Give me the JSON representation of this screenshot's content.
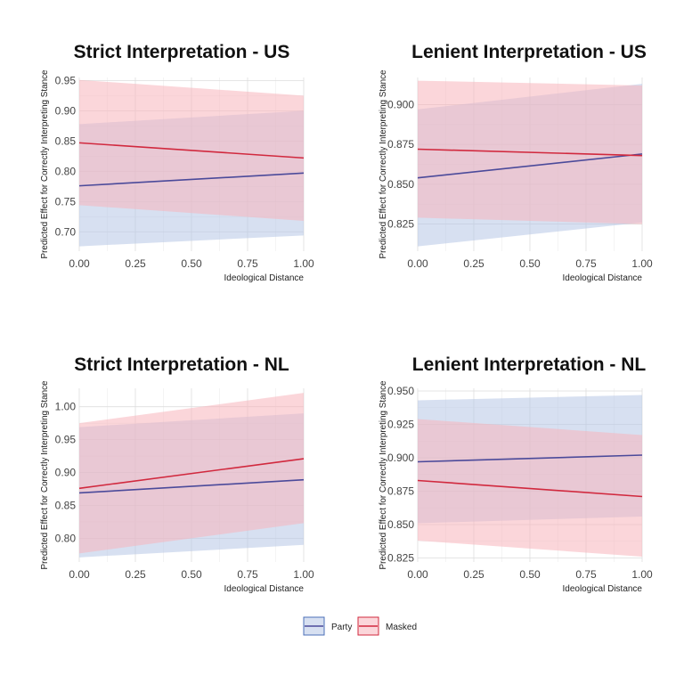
{
  "colors": {
    "party_line": "#4b4a9a",
    "party_fill": "#b7c6e6",
    "masked_line": "#d1293e",
    "masked_fill": "#f8b4bb",
    "grid": "#dddddd"
  },
  "legend": {
    "items": [
      {
        "label": "Party",
        "line": "#4b4a9a",
        "fill": "#b7c6e6",
        "border": "#4b6fb8"
      },
      {
        "label": "Masked",
        "line": "#d1293e",
        "fill": "#f8b4bb",
        "border": "#d1293e"
      }
    ]
  },
  "chart_data": [
    {
      "type": "line",
      "title": "Strict Interpretation - US",
      "xlabel": "Ideological Distance",
      "ylabel": "Predicted Effect for Correctly Interpreting Stance",
      "xlim": [
        0,
        1
      ],
      "ylim": [
        0.668,
        0.955
      ],
      "xticks": [
        0,
        0.25,
        0.5,
        0.75,
        1
      ],
      "xtick_labels": [
        "0.00",
        "0.25",
        "0.50",
        "0.75",
        "1.00"
      ],
      "yticks": [
        0.7,
        0.75,
        0.8,
        0.85,
        0.9,
        0.95
      ],
      "ytick_labels": [
        "0.70",
        "0.75",
        "0.80",
        "0.85",
        "0.90",
        "0.95"
      ],
      "grid": true,
      "series": [
        {
          "name": "Party",
          "x": [
            0,
            1
          ],
          "y": [
            0.776,
            0.797
          ],
          "lower": [
            0.676,
            0.694
          ],
          "upper": [
            0.878,
            0.9
          ]
        },
        {
          "name": "Masked",
          "x": [
            0,
            1
          ],
          "y": [
            0.847,
            0.822
          ],
          "lower": [
            0.744,
            0.718
          ],
          "upper": [
            0.951,
            0.925
          ]
        }
      ]
    },
    {
      "type": "line",
      "title": "Lenient Interpretation - US",
      "xlabel": "Ideological Distance",
      "ylabel": "Predicted Effect for Correctly Interpreting Stance",
      "xlim": [
        0,
        1
      ],
      "ylim": [
        0.808,
        0.917
      ],
      "xticks": [
        0,
        0.25,
        0.5,
        0.75,
        1
      ],
      "xtick_labels": [
        "0.00",
        "0.25",
        "0.50",
        "0.75",
        "1.00"
      ],
      "yticks": [
        0.825,
        0.85,
        0.875,
        0.9
      ],
      "ytick_labels": [
        "0.825",
        "0.850",
        "0.875",
        "0.900"
      ],
      "grid": true,
      "series": [
        {
          "name": "Party",
          "x": [
            0,
            1
          ],
          "y": [
            0.854,
            0.869
          ],
          "lower": [
            0.811,
            0.826
          ],
          "upper": [
            0.897,
            0.913
          ]
        },
        {
          "name": "Masked",
          "x": [
            0,
            1
          ],
          "y": [
            0.872,
            0.868
          ],
          "lower": [
            0.829,
            0.825
          ],
          "upper": [
            0.915,
            0.912
          ]
        }
      ]
    },
    {
      "type": "line",
      "title": "Strict Interpretation - NL",
      "xlabel": "Ideological Distance",
      "ylabel": "Predicted Effect for Correctly Interpreting Stance",
      "xlim": [
        0,
        1
      ],
      "ylim": [
        0.764,
        1.028
      ],
      "xticks": [
        0,
        0.25,
        0.5,
        0.75,
        1
      ],
      "xtick_labels": [
        "0.00",
        "0.25",
        "0.50",
        "0.75",
        "1.00"
      ],
      "yticks": [
        0.8,
        0.85,
        0.9,
        0.95,
        1.0
      ],
      "ytick_labels": [
        "0.80",
        "0.85",
        "0.90",
        "0.95",
        "1.00"
      ],
      "grid": true,
      "series": [
        {
          "name": "Party",
          "x": [
            0,
            1
          ],
          "y": [
            0.869,
            0.889
          ],
          "lower": [
            0.771,
            0.79
          ],
          "upper": [
            0.969,
            0.99
          ]
        },
        {
          "name": "Masked",
          "x": [
            0,
            1
          ],
          "y": [
            0.876,
            0.921
          ],
          "lower": [
            0.777,
            0.823
          ],
          "upper": [
            0.975,
            1.021
          ]
        }
      ]
    },
    {
      "type": "line",
      "title": "Lenient Interpretation - NL",
      "xlabel": "Ideological Distance",
      "ylabel": "Predicted Effect for Correctly Interpreting Stance",
      "xlim": [
        0,
        1
      ],
      "ylim": [
        0.822,
        0.952
      ],
      "xticks": [
        0,
        0.25,
        0.5,
        0.75,
        1
      ],
      "xtick_labels": [
        "0.00",
        "0.25",
        "0.50",
        "0.75",
        "1.00"
      ],
      "yticks": [
        0.825,
        0.85,
        0.875,
        0.9,
        0.925,
        0.95
      ],
      "ytick_labels": [
        "0.825",
        "0.850",
        "0.875",
        "0.900",
        "0.925",
        "0.950"
      ],
      "grid": true,
      "series": [
        {
          "name": "Party",
          "x": [
            0,
            1
          ],
          "y": [
            0.897,
            0.902
          ],
          "lower": [
            0.851,
            0.856
          ],
          "upper": [
            0.943,
            0.947
          ]
        },
        {
          "name": "Masked",
          "x": [
            0,
            1
          ],
          "y": [
            0.883,
            0.871
          ],
          "lower": [
            0.838,
            0.826
          ],
          "upper": [
            0.929,
            0.917
          ]
        }
      ]
    }
  ]
}
